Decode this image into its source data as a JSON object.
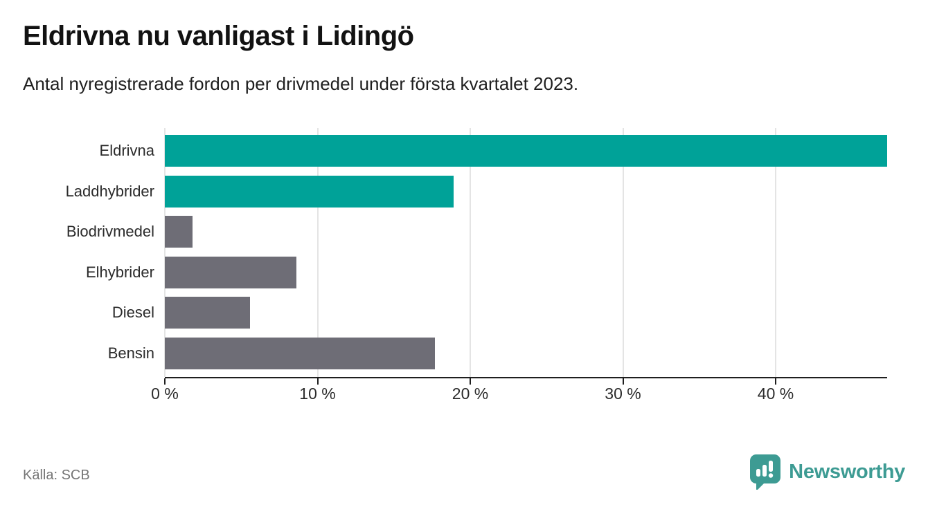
{
  "header": {
    "title": "Eldrivna nu vanligast i Lidingö",
    "subtitle": "Antal nyregistrerade fordon per drivmedel under första kvartalet 2023."
  },
  "chart_data": {
    "type": "bar",
    "orientation": "horizontal",
    "title": "Eldrivna nu vanligast i Lidingö",
    "subtitle": "Antal nyregistrerade fordon per drivmedel under första kvartalet 2023.",
    "categories": [
      "Eldrivna",
      "Laddhybrider",
      "Biodrivmedel",
      "Elhybrider",
      "Diesel",
      "Bensin"
    ],
    "values": [
      47.3,
      18.9,
      1.8,
      8.6,
      5.6,
      17.7
    ],
    "unit": "%",
    "xlim": [
      0,
      47.3
    ],
    "xticks": [
      0,
      10,
      20,
      30,
      40
    ],
    "xtick_labels": [
      "0 %",
      "10 %",
      "20 %",
      "30 %",
      "40 %"
    ],
    "bar_colors": [
      "#00A298",
      "#00A298",
      "#6E6D76",
      "#6E6D76",
      "#6E6D76",
      "#6E6D76"
    ],
    "grid": "vertical",
    "legend": "none"
  },
  "footer": {
    "source": "Källa: SCB",
    "brand": "Newsworthy"
  },
  "colors": {
    "highlight": "#00A298",
    "neutral": "#6E6D76",
    "brand": "#3D9B93",
    "grid": "#E4E4E4",
    "axis": "#1F1F1F",
    "muted": "#757575"
  }
}
